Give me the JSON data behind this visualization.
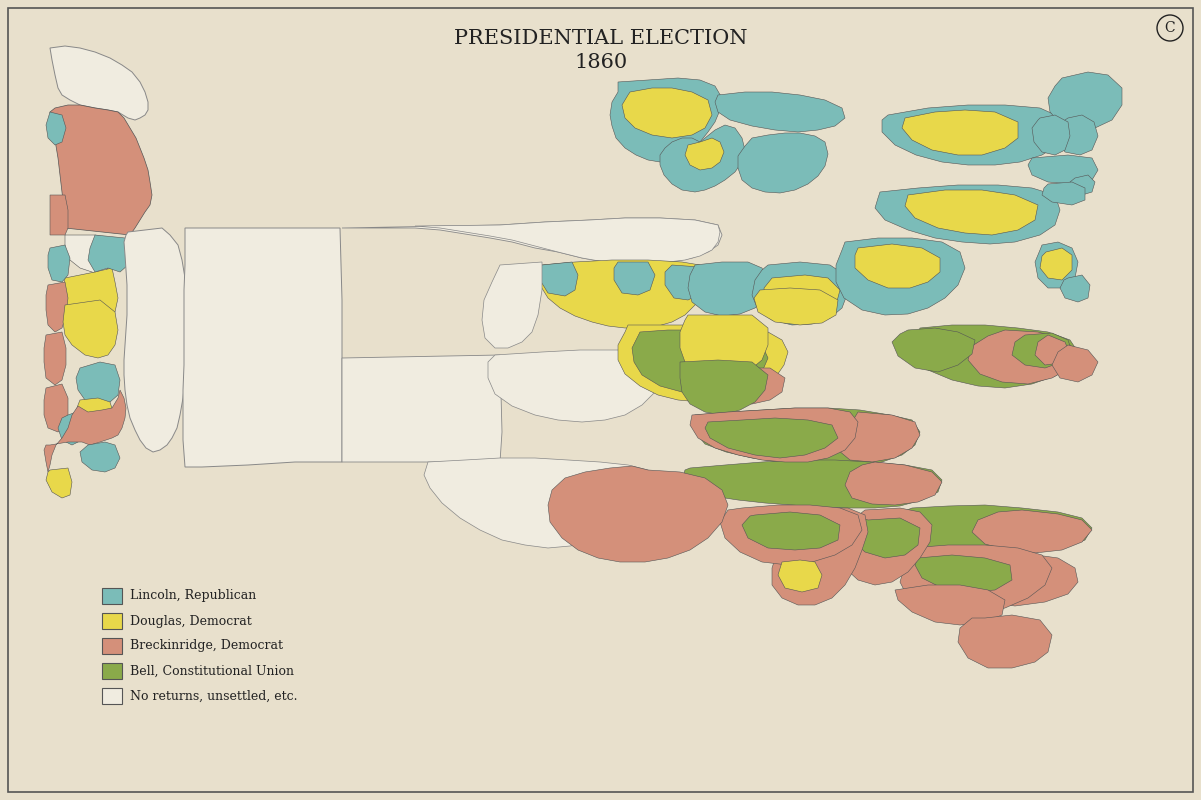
{
  "title_line1": "PRESIDENTIAL ELECTION",
  "title_line2": "1860",
  "background_color": "#e8e0cc",
  "border_color": "#555555",
  "legend_items": [
    {
      "label": "Lincoln, Republican",
      "color": "#7bbcb8"
    },
    {
      "label": "Douglas, Democrat",
      "color": "#e8d84a"
    },
    {
      "label": "Breckinridge, Democrat",
      "color": "#d4907a"
    },
    {
      "label": "Bell, Constitutional Union",
      "color": "#8aaa4a"
    },
    {
      "label": "No returns, unsettled, etc.",
      "color": "#f0ece0"
    }
  ],
  "county_results": {
    "lincoln_color": "#7bbcb8",
    "douglas_color": "#e8d84a",
    "breckinridge_color": "#d4907a",
    "bell_color": "#8aaa4a",
    "no_returns_color": "#f0ece0"
  },
  "title_fontsize": 15,
  "corner_label": "C",
  "figsize": [
    12.01,
    8.0
  ],
  "dpi": 100
}
